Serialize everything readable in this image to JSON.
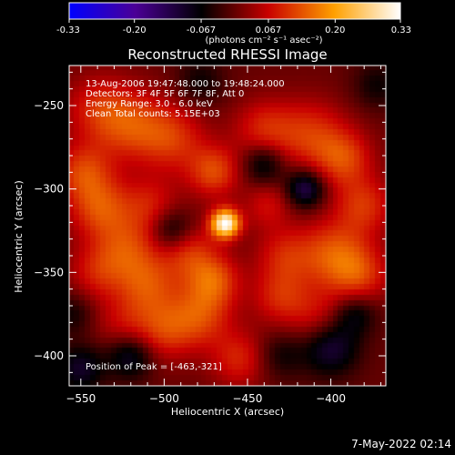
{
  "chart_data": {
    "type": "heatmap",
    "title": "Reconstructed RHESSI Image",
    "xlabel": "Heliocentric X (arcsec)",
    "ylabel": "Heliocentric Y (arcsec)",
    "xlim": [
      -557,
      -367
    ],
    "ylim": [
      -418,
      -226
    ],
    "x_ticks": [
      -550,
      -500,
      -450,
      -400
    ],
    "y_ticks": [
      -250,
      -300,
      -350,
      -400
    ],
    "colorbar": {
      "range": [
        -0.33,
        0.33
      ],
      "ticks": [
        "-0.33",
        "-0.20",
        "-0.067",
        "0.067",
        "0.20",
        "0.33"
      ],
      "label": "(photons cm⁻² s⁻¹ asec⁻²)",
      "colormap": [
        "#0000ff",
        "#4b0096",
        "#000000",
        "#c80000",
        "#ffa000",
        "#ffffff"
      ]
    },
    "annotations": [
      "13-Aug-2006 19:47:48.000 to 19:48:24.000",
      "Detectors: 3F 4F 5F 6F 7F 8F, Att 0",
      "Energy Range: 3.0 - 6.0 keV",
      "Clean    Total counts: 5.15E+03"
    ],
    "peak_text": "Position of Peak = [-463,-321]",
    "peak": {
      "x": -463,
      "y": -321,
      "value": 0.33
    },
    "sources": [
      {
        "x": -463,
        "y": -321,
        "amp": 0.33,
        "sigma": 6
      },
      {
        "x": -540,
        "y": -252,
        "amp": 0.08,
        "sigma": 14
      },
      {
        "x": -520,
        "y": -262,
        "amp": 0.11,
        "sigma": 15
      },
      {
        "x": -495,
        "y": -270,
        "amp": 0.1,
        "sigma": 14
      },
      {
        "x": -470,
        "y": -290,
        "amp": 0.12,
        "sigma": 11
      },
      {
        "x": -440,
        "y": -265,
        "amp": 0.09,
        "sigma": 13
      },
      {
        "x": -412,
        "y": -268,
        "amp": 0.1,
        "sigma": 15
      },
      {
        "x": -392,
        "y": -282,
        "amp": 0.11,
        "sigma": 12
      },
      {
        "x": -380,
        "y": -310,
        "amp": 0.1,
        "sigma": 12
      },
      {
        "x": -398,
        "y": -340,
        "amp": 0.13,
        "sigma": 15
      },
      {
        "x": -382,
        "y": -352,
        "amp": 0.09,
        "sigma": 12
      },
      {
        "x": -428,
        "y": -340,
        "amp": 0.08,
        "sigma": 12
      },
      {
        "x": -430,
        "y": -365,
        "amp": 0.09,
        "sigma": 12
      },
      {
        "x": -408,
        "y": -378,
        "amp": 0.07,
        "sigma": 12
      },
      {
        "x": -548,
        "y": -290,
        "amp": 0.11,
        "sigma": 12
      },
      {
        "x": -538,
        "y": -312,
        "amp": 0.12,
        "sigma": 13
      },
      {
        "x": -522,
        "y": -336,
        "amp": 0.1,
        "sigma": 13
      },
      {
        "x": -540,
        "y": -350,
        "amp": 0.08,
        "sigma": 12
      },
      {
        "x": -510,
        "y": -358,
        "amp": 0.11,
        "sigma": 13
      },
      {
        "x": -485,
        "y": -338,
        "amp": 0.1,
        "sigma": 12
      },
      {
        "x": -470,
        "y": -355,
        "amp": 0.12,
        "sigma": 11
      },
      {
        "x": -478,
        "y": -376,
        "amp": 0.11,
        "sigma": 13
      },
      {
        "x": -500,
        "y": -385,
        "amp": 0.1,
        "sigma": 13
      },
      {
        "x": -525,
        "y": -382,
        "amp": 0.06,
        "sigma": 12
      },
      {
        "x": -455,
        "y": -402,
        "amp": 0.09,
        "sigma": 12
      },
      {
        "x": -508,
        "y": -310,
        "amp": 0.08,
        "sigma": 12
      },
      {
        "x": -438,
        "y": -310,
        "amp": 0.07,
        "sigma": 10
      },
      {
        "x": -415,
        "y": -300,
        "amp": -0.14,
        "sigma": 8
      },
      {
        "x": -440,
        "y": -285,
        "amp": -0.1,
        "sigma": 9
      },
      {
        "x": -495,
        "y": -325,
        "amp": -0.1,
        "sigma": 9
      },
      {
        "x": -520,
        "y": -400,
        "amp": -0.11,
        "sigma": 10
      },
      {
        "x": -400,
        "y": -395,
        "amp": -0.12,
        "sigma": 12
      },
      {
        "x": -385,
        "y": -375,
        "amp": -0.08,
        "sigma": 9
      },
      {
        "x": -550,
        "y": -408,
        "amp": -0.1,
        "sigma": 10
      },
      {
        "x": -555,
        "y": -375,
        "amp": -0.06,
        "sigma": 9
      },
      {
        "x": -478,
        "y": -236,
        "amp": -0.06,
        "sigma": 10
      },
      {
        "x": -372,
        "y": -238,
        "amp": -0.06,
        "sigma": 10
      },
      {
        "x": -430,
        "y": -400,
        "amp": -0.06,
        "sigma": 10
      }
    ]
  },
  "footer": {
    "timestamp": "7-May-2022 02:14"
  }
}
